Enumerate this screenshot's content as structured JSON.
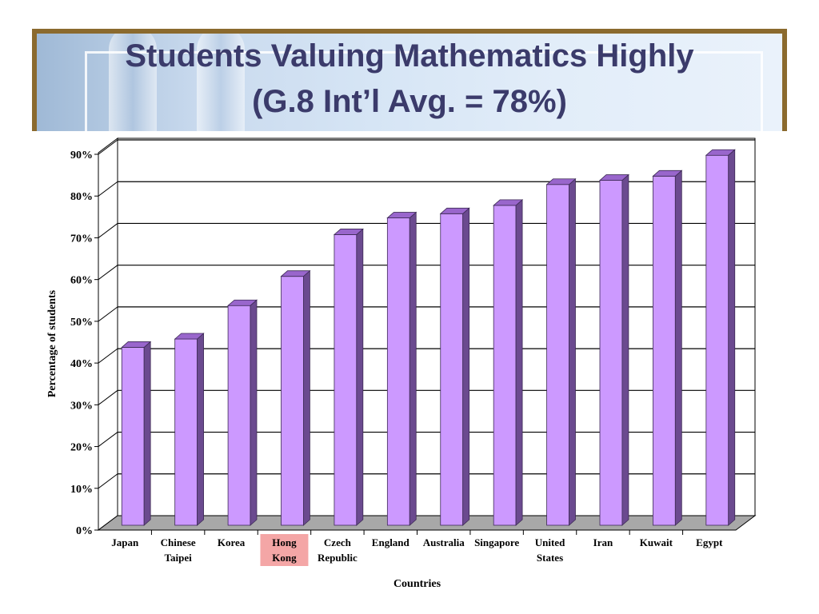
{
  "title_line1": "Students Valuing Mathematics Highly",
  "title_line2": "(G.8 Int’l Avg. = 78%)",
  "chart_data": {
    "type": "bar",
    "title": "Students Valuing Mathematics Highly (G.8 Int’l Avg. = 78%)",
    "xlabel": "Countries",
    "ylabel": "Percentage of students",
    "ylim": [
      0,
      90
    ],
    "yticks": [
      "0%",
      "10%",
      "20%",
      "30%",
      "40%",
      "50%",
      "60%",
      "70%",
      "80%",
      "90%"
    ],
    "grid": true,
    "categories": [
      [
        "Japan"
      ],
      [
        "Chinese",
        "Taipei"
      ],
      [
        "Korea"
      ],
      [
        "Hong",
        "Kong"
      ],
      [
        "Czech",
        "Republic"
      ],
      [
        "England"
      ],
      [
        "Australia"
      ],
      [
        "Singapore"
      ],
      [
        "United",
        "States"
      ],
      [
        "Iran"
      ],
      [
        "Kuwait"
      ],
      [
        "Egypt"
      ]
    ],
    "values": [
      43,
      45,
      53,
      60,
      70,
      74,
      75,
      77,
      82,
      83,
      84,
      89
    ],
    "highlight_category": "Hong Kong",
    "highlight_color": "#f4a6a6",
    "bar_color": "#cc99ff",
    "bar_side_color": "#6b4a8f",
    "bar_top_color": "#9966cc"
  }
}
